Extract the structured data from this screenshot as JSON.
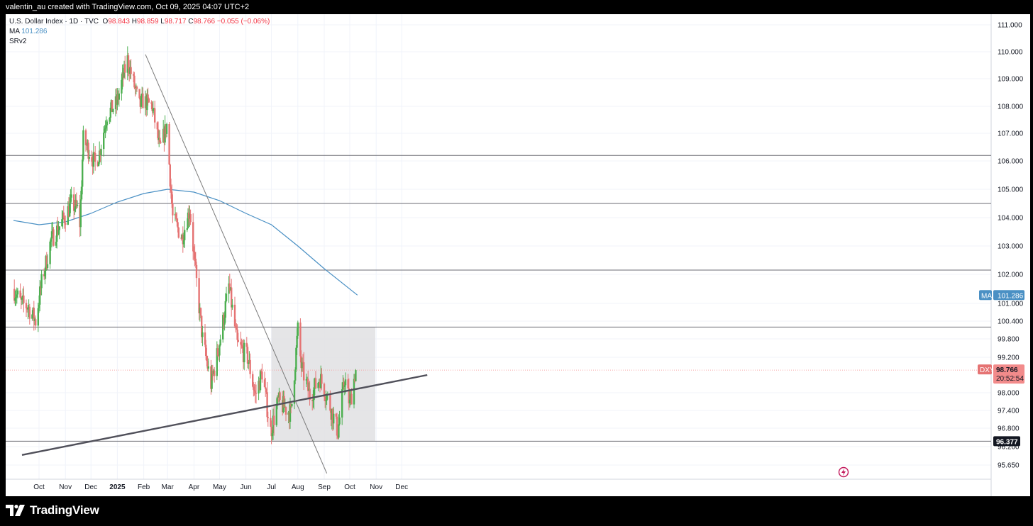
{
  "header": {
    "credit": "valentin_au created with TradingView.com, Oct 09, 2025 04:07 UTC+2"
  },
  "legend": {
    "symbol": "U.S. Dollar Index · 1D · TVC",
    "o_label": "O",
    "o_value": "98.843",
    "h_label": "H",
    "h_value": "98.859",
    "l_label": "L",
    "l_value": "98.717",
    "c_label": "C",
    "c_value": "98.766",
    "change": "−0.055 (−0.06%)",
    "ma_label": "MA",
    "ma_value": "101.286",
    "indicator": "SRv2"
  },
  "footer": {
    "brand": "TradingView"
  },
  "colors": {
    "up": "#4caf50",
    "down": "#e57373",
    "ma": "#4a90c4",
    "trend": "#50505a",
    "zone": "#e0e1e3"
  },
  "chart_data": {
    "type": "candlestick",
    "x_ticks": [
      "Oct",
      "Nov",
      "Dec",
      "2025",
      "Feb",
      "Mar",
      "Apr",
      "May",
      "Jun",
      "Jul",
      "Aug",
      "Sep",
      "Oct",
      "Nov",
      "Dec"
    ],
    "y_ticks": [
      "111.000",
      "110.000",
      "109.000",
      "108.000",
      "107.000",
      "106.000",
      "105.000",
      "104.000",
      "103.000",
      "102.000",
      "101.000",
      "100.400",
      "99.800",
      "99.200",
      "98.000",
      "97.400",
      "96.800",
      "96.200",
      "95.650"
    ],
    "ylim": [
      95.3,
      111.4
    ],
    "price_labels": [
      {
        "symbol": "DXY",
        "value": "98.766",
        "countdown": "20:52:54"
      },
      {
        "symbol": "MA",
        "value": "101.286"
      },
      {
        "value": "96.377"
      }
    ],
    "support_resistance_levels": [
      106.2,
      104.5,
      102.15,
      100.2,
      96.377
    ],
    "consolidation_zone": {
      "from": "2025-07-01",
      "to": "2025-10-31",
      "low": 96.377,
      "high": 100.2
    },
    "trendlines": [
      {
        "from": [
          "2024-09-11",
          95.95
        ],
        "to": [
          "2025-12-31",
          98.6
        ]
      },
      {
        "from": [
          "2025-02-03",
          109.9
        ],
        "to": [
          "2025-09-04",
          95.4
        ]
      }
    ],
    "moving_average": {
      "label": "MA",
      "last": 101.286,
      "points": [
        [
          "2024-09-01",
          103.9
        ],
        [
          "2024-10-01",
          103.75
        ],
        [
          "2024-11-01",
          103.85
        ],
        [
          "2024-12-01",
          104.15
        ],
        [
          "2025-01-01",
          104.55
        ],
        [
          "2025-02-01",
          104.85
        ],
        [
          "2025-03-01",
          105.0
        ],
        [
          "2025-04-01",
          104.9
        ],
        [
          "2025-05-01",
          104.6
        ],
        [
          "2025-06-01",
          104.15
        ],
        [
          "2025-07-01",
          103.75
        ],
        [
          "2025-08-01",
          103.0
        ],
        [
          "2025-09-01",
          102.2
        ],
        [
          "2025-10-10",
          101.286
        ]
      ]
    },
    "ohlc_anchors": [
      [
        "2024-09-01",
        101.5
      ],
      [
        "2024-09-10",
        101.0
      ],
      [
        "2024-09-18",
        100.9
      ],
      [
        "2024-09-27",
        100.4
      ],
      [
        "2024-10-04",
        101.7
      ],
      [
        "2024-10-15",
        103.2
      ],
      [
        "2024-10-31",
        104.0
      ],
      [
        "2024-11-08",
        104.5
      ],
      [
        "2024-11-15",
        104.3
      ],
      [
        "2024-11-18",
        103.8
      ],
      [
        "2024-11-22",
        106.8
      ],
      [
        "2024-12-06",
        105.9
      ],
      [
        "2024-12-11",
        106.3
      ],
      [
        "2024-12-20",
        107.7
      ],
      [
        "2024-12-31",
        108.1
      ],
      [
        "2025-01-13",
        109.7
      ],
      [
        "2025-01-27",
        108.0
      ],
      [
        "2025-01-31",
        108.2
      ],
      [
        "2025-02-11",
        108.0
      ],
      [
        "2025-02-20",
        106.4
      ],
      [
        "2025-02-28",
        107.3
      ],
      [
        "2025-03-07",
        104.0
      ],
      [
        "2025-03-18",
        103.3
      ],
      [
        "2025-03-27",
        104.3
      ],
      [
        "2025-04-03",
        102.0
      ],
      [
        "2025-04-11",
        99.8
      ],
      [
        "2025-04-21",
        98.3
      ],
      [
        "2025-04-30",
        99.5
      ],
      [
        "2025-05-12",
        101.6
      ],
      [
        "2025-05-22",
        99.6
      ],
      [
        "2025-06-03",
        99.2
      ],
      [
        "2025-06-12",
        97.9
      ],
      [
        "2025-06-20",
        98.7
      ],
      [
        "2025-06-30",
        96.7
      ],
      [
        "2025-07-09",
        97.7
      ],
      [
        "2025-07-24",
        97.3
      ],
      [
        "2025-08-01",
        100.1
      ],
      [
        "2025-08-05",
        98.9
      ],
      [
        "2025-08-15",
        97.9
      ],
      [
        "2025-08-27",
        98.5
      ],
      [
        "2025-09-05",
        97.8
      ],
      [
        "2025-09-17",
        96.7
      ],
      [
        "2025-09-25",
        98.5
      ],
      [
        "2025-10-01",
        97.6
      ],
      [
        "2025-10-08",
        98.8
      ]
    ]
  }
}
